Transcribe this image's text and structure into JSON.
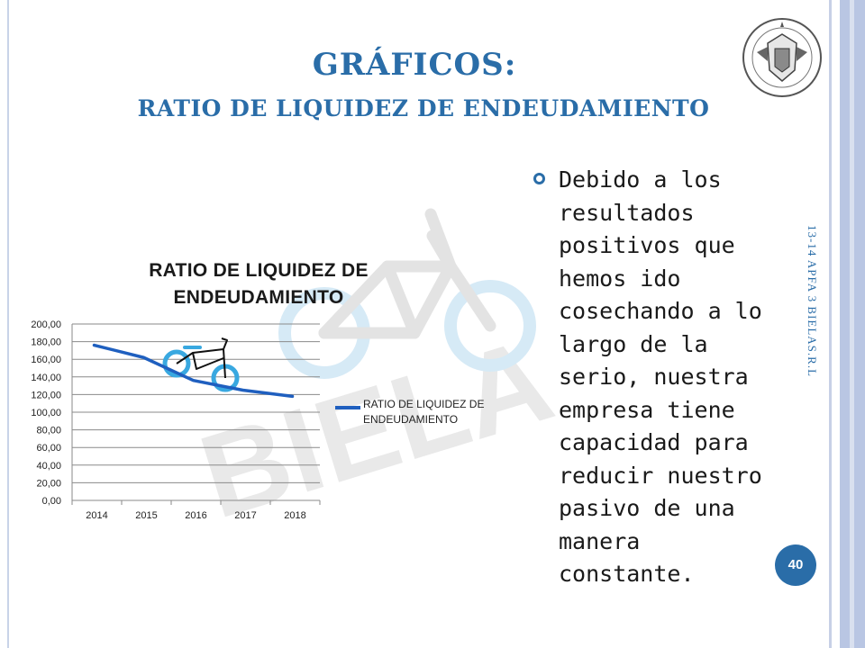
{
  "slide": {
    "title_line1": "GRÁFICOS:",
    "title_line2": "RATIO DE LIQUIDEZ DE ENDEUDAMIENTO",
    "bullet_text": "Debido a los resultados positivos que hemos ido cosechando a lo largo de la serio, nuestra empresa tiene capacidad para reducir nuestro pasivo de una manera constante.",
    "side_note": "13-14 APFA 3 BIELAS.R.L",
    "page_number": "40",
    "watermark_text": "BIELA",
    "colors": {
      "accent": "#2a6da8",
      "series": "#1f5fbf",
      "bike": "#39a8e0"
    }
  },
  "chart_data": {
    "type": "line",
    "title": "RATIO DE LIQUIDEZ DE ENDEUDAMIENTO",
    "categories": [
      "2014",
      "2015",
      "2016",
      "2017",
      "2018"
    ],
    "series": [
      {
        "name": "RATIO DE LIQUIDEZ DE ENDEUDAMIENTO",
        "values": [
          176,
          162,
          136,
          125,
          118
        ]
      }
    ],
    "y_ticks": [
      "0,00",
      "20,00",
      "40,00",
      "60,00",
      "80,00",
      "100,00",
      "120,00",
      "140,00",
      "160,00",
      "180,00",
      "200,00"
    ],
    "ylim": [
      0,
      200
    ],
    "grid": true,
    "legend_position": "right"
  }
}
